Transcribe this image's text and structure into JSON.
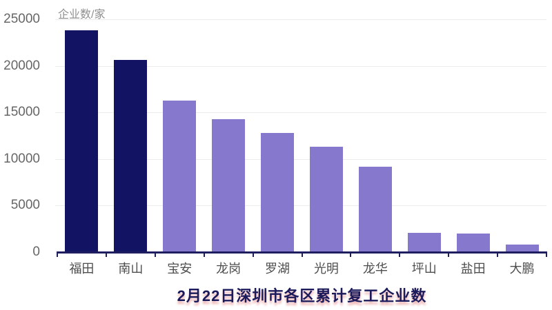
{
  "chart_data": {
    "type": "bar",
    "title": "2月22日深圳市各区累计复工企业数",
    "unit_label": "企业数/家",
    "categories": [
      "福田",
      "南山",
      "宝安",
      "龙岗",
      "罗湖",
      "光明",
      "龙华",
      "坪山",
      "盐田",
      "大鹏"
    ],
    "values": [
      23800,
      20600,
      16300,
      14300,
      12800,
      11300,
      9200,
      2100,
      2000,
      850
    ],
    "bar_colors": [
      "#131364",
      "#131364",
      "#8678CC",
      "#8678CC",
      "#8678CC",
      "#8678CC",
      "#8678CC",
      "#8678CC",
      "#8678CC",
      "#8678CC"
    ],
    "yticks": [
      0,
      5000,
      10000,
      15000,
      20000,
      25000
    ],
    "ylim": [
      0,
      25000
    ],
    "xlabel": "",
    "ylabel": "企业数/家",
    "grid": true,
    "legend": "none",
    "colors": {
      "bar_highlight": "#131364",
      "bar_default": "#8678CC",
      "axis": "#1D1D60",
      "gridline": "#ECECEC",
      "y_tick_label": "#666666",
      "category_label": "#4D4D4D",
      "unit_label": "#8F8F8F",
      "title": "#1B1B5C",
      "title_shadow": "#DD5F5F"
    }
  }
}
